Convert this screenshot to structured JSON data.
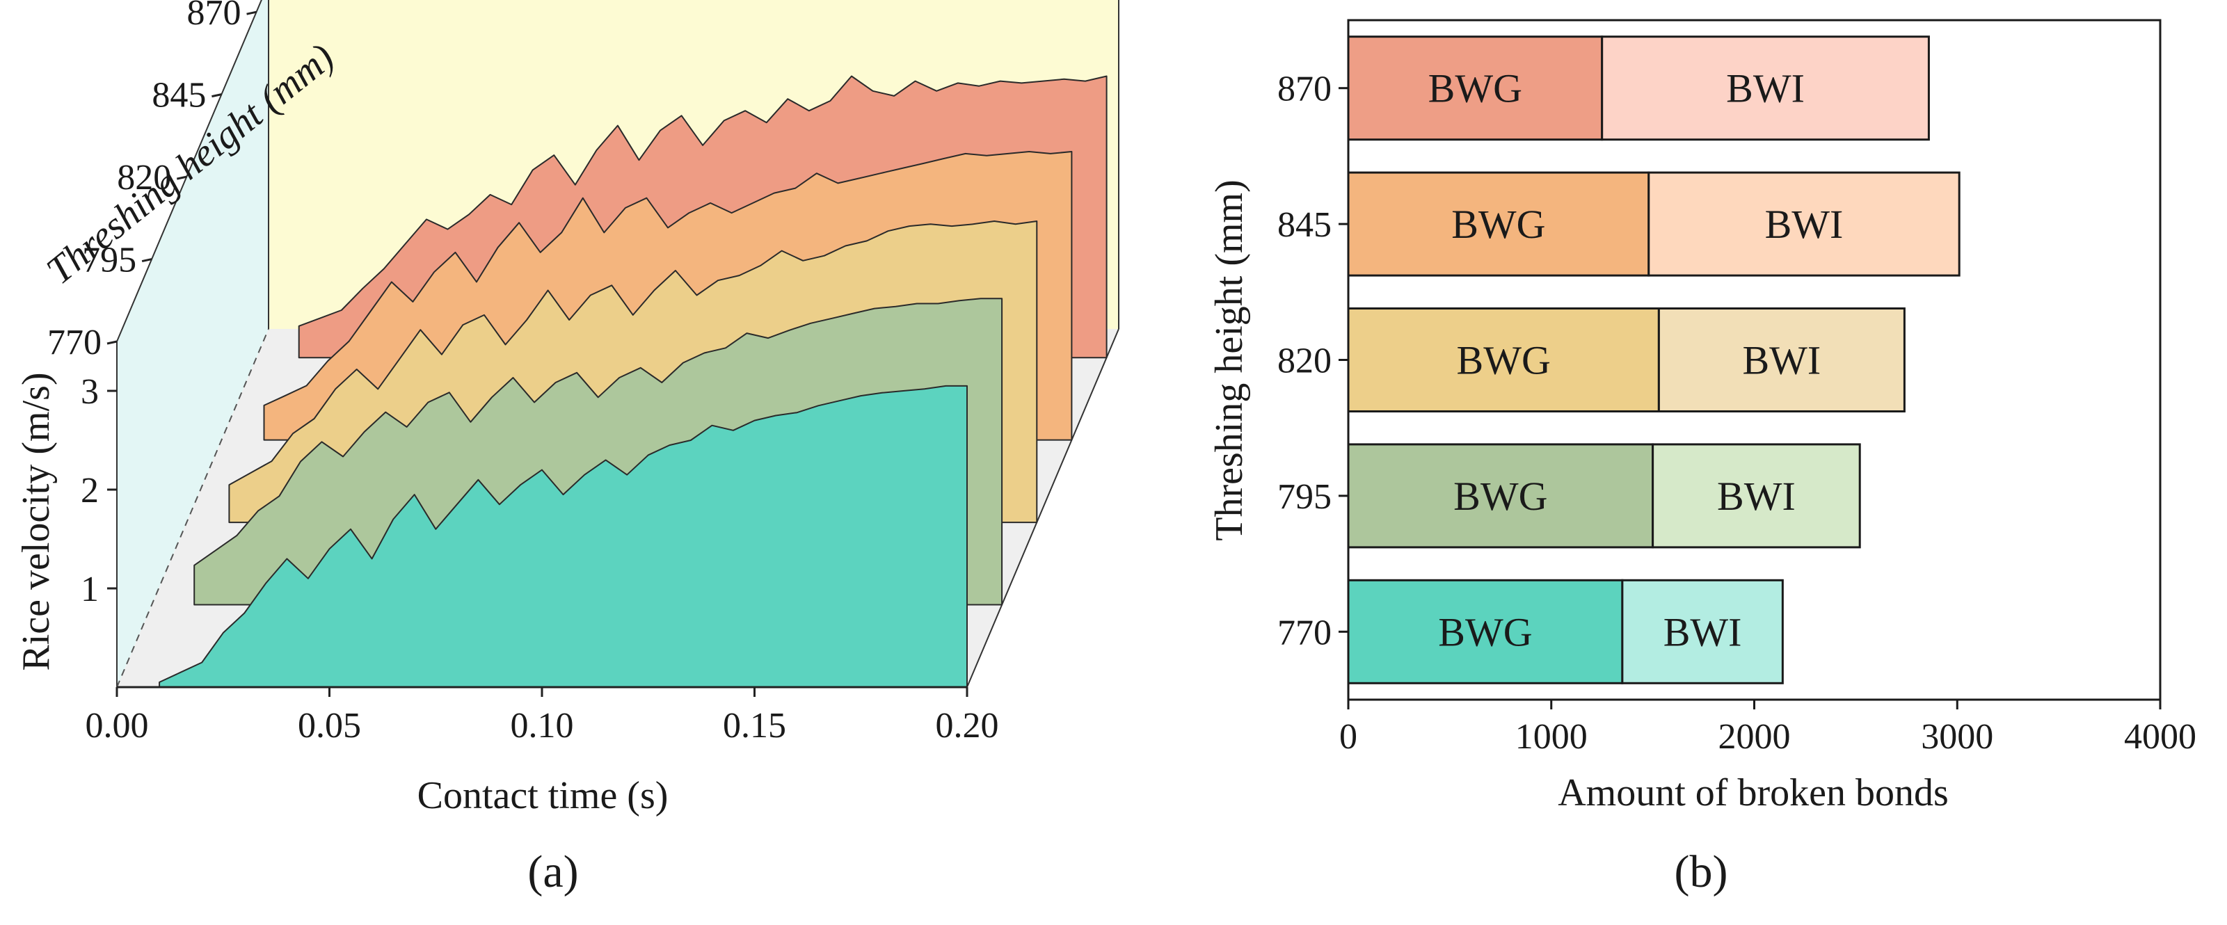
{
  "figure": {
    "panel_a_label": "(a)",
    "panel_b_label": "(b)"
  },
  "chart_data": [
    {
      "type": "area",
      "subtype": "3d-waterfall",
      "title": "",
      "xlabel": "Contact time (s)",
      "ylabel": "Rice velocity (m/s)",
      "zlabel": "Threshing height (mm)",
      "xlim": [
        0.0,
        0.2
      ],
      "ylim": [
        0,
        3.5
      ],
      "x_ticks": [
        "0.00",
        "0.05",
        "0.10",
        "0.15",
        "0.20"
      ],
      "y_ticks": [
        "1",
        "2",
        "3"
      ],
      "z_ticks": [
        "770",
        "795",
        "820",
        "845",
        "870"
      ],
      "wall_colors": {
        "left": "#e3f6f5",
        "back": "#fdfbd3",
        "floor": "#efefef"
      },
      "series": [
        {
          "name": "870",
          "color": "#ee9c84",
          "x": [
            0.01,
            0.015,
            0.02,
            0.025,
            0.03,
            0.035,
            0.04,
            0.045,
            0.05,
            0.055,
            0.06,
            0.065,
            0.07,
            0.075,
            0.08,
            0.085,
            0.09,
            0.095,
            0.1,
            0.105,
            0.11,
            0.115,
            0.12,
            0.125,
            0.13,
            0.135,
            0.14,
            0.145,
            0.15,
            0.155,
            0.16,
            0.165,
            0.17,
            0.175,
            0.18,
            0.185,
            0.19,
            0.195,
            0.2
          ],
          "values": [
            0.32,
            0.4,
            0.48,
            0.7,
            0.9,
            1.15,
            1.4,
            1.3,
            1.45,
            1.65,
            1.55,
            1.9,
            2.05,
            1.75,
            2.1,
            2.35,
            2.0,
            2.3,
            2.45,
            2.15,
            2.4,
            2.5,
            2.38,
            2.62,
            2.5,
            2.6,
            2.85,
            2.7,
            2.65,
            2.8,
            2.7,
            2.78,
            2.75,
            2.8,
            2.78,
            2.8,
            2.82,
            2.8,
            2.85
          ]
        },
        {
          "name": "845",
          "color": "#f4b57e",
          "x": [
            0.01,
            0.015,
            0.02,
            0.025,
            0.03,
            0.035,
            0.04,
            0.045,
            0.05,
            0.055,
            0.06,
            0.065,
            0.07,
            0.075,
            0.08,
            0.085,
            0.09,
            0.095,
            0.1,
            0.105,
            0.11,
            0.115,
            0.12,
            0.125,
            0.13,
            0.135,
            0.14,
            0.145,
            0.15,
            0.155,
            0.16,
            0.165,
            0.17,
            0.175,
            0.18,
            0.185,
            0.19,
            0.195,
            0.2
          ],
          "values": [
            0.35,
            0.45,
            0.55,
            0.8,
            1.0,
            1.3,
            1.6,
            1.4,
            1.7,
            1.9,
            1.6,
            1.95,
            2.2,
            1.9,
            2.1,
            2.45,
            2.1,
            2.35,
            2.45,
            2.15,
            2.3,
            2.4,
            2.3,
            2.4,
            2.5,
            2.55,
            2.7,
            2.6,
            2.65,
            2.7,
            2.75,
            2.8,
            2.85,
            2.9,
            2.88,
            2.9,
            2.92,
            2.9,
            2.92
          ]
        },
        {
          "name": "820",
          "color": "#eccf8a",
          "x": [
            0.01,
            0.015,
            0.02,
            0.025,
            0.03,
            0.035,
            0.04,
            0.045,
            0.05,
            0.055,
            0.06,
            0.065,
            0.07,
            0.075,
            0.08,
            0.085,
            0.09,
            0.095,
            0.1,
            0.105,
            0.11,
            0.115,
            0.12,
            0.125,
            0.13,
            0.135,
            0.14,
            0.145,
            0.15,
            0.155,
            0.16,
            0.165,
            0.17,
            0.175,
            0.18,
            0.185,
            0.19,
            0.195,
            0.2
          ],
          "values": [
            0.38,
            0.5,
            0.62,
            0.9,
            1.05,
            1.35,
            1.55,
            1.35,
            1.65,
            1.95,
            1.7,
            2.0,
            2.1,
            1.8,
            2.05,
            2.35,
            2.05,
            2.3,
            2.4,
            2.1,
            2.35,
            2.55,
            2.3,
            2.45,
            2.5,
            2.6,
            2.75,
            2.65,
            2.7,
            2.8,
            2.85,
            2.95,
            3.0,
            3.02,
            3.0,
            3.02,
            3.05,
            3.02,
            3.05
          ]
        },
        {
          "name": "795",
          "color": "#adc79c",
          "x": [
            0.01,
            0.015,
            0.02,
            0.025,
            0.03,
            0.035,
            0.04,
            0.045,
            0.05,
            0.055,
            0.06,
            0.065,
            0.07,
            0.075,
            0.08,
            0.085,
            0.09,
            0.095,
            0.1,
            0.105,
            0.11,
            0.115,
            0.12,
            0.125,
            0.13,
            0.135,
            0.14,
            0.145,
            0.15,
            0.155,
            0.16,
            0.165,
            0.17,
            0.175,
            0.18,
            0.185,
            0.19,
            0.195,
            0.2
          ],
          "values": [
            0.4,
            0.55,
            0.7,
            0.95,
            1.1,
            1.45,
            1.65,
            1.5,
            1.75,
            1.95,
            1.8,
            2.05,
            2.15,
            1.85,
            2.1,
            2.3,
            2.05,
            2.25,
            2.35,
            2.1,
            2.3,
            2.4,
            2.25,
            2.45,
            2.55,
            2.6,
            2.75,
            2.7,
            2.78,
            2.85,
            2.9,
            2.95,
            3.0,
            3.02,
            3.05,
            3.05,
            3.08,
            3.1,
            3.1
          ]
        },
        {
          "name": "770",
          "color": "#5cd3bf",
          "x": [
            0.01,
            0.015,
            0.02,
            0.025,
            0.03,
            0.035,
            0.04,
            0.045,
            0.05,
            0.055,
            0.06,
            0.065,
            0.07,
            0.075,
            0.08,
            0.085,
            0.09,
            0.095,
            0.1,
            0.105,
            0.11,
            0.115,
            0.12,
            0.125,
            0.13,
            0.135,
            0.14,
            0.145,
            0.15,
            0.155,
            0.16,
            0.165,
            0.17,
            0.175,
            0.18,
            0.185,
            0.19,
            0.195,
            0.2
          ],
          "values": [
            0.05,
            0.15,
            0.25,
            0.55,
            0.75,
            1.05,
            1.3,
            1.1,
            1.4,
            1.6,
            1.3,
            1.7,
            1.95,
            1.6,
            1.85,
            2.1,
            1.85,
            2.05,
            2.2,
            1.95,
            2.15,
            2.3,
            2.15,
            2.35,
            2.45,
            2.5,
            2.65,
            2.6,
            2.7,
            2.75,
            2.78,
            2.85,
            2.9,
            2.95,
            2.98,
            3.0,
            3.02,
            3.05,
            3.05
          ]
        }
      ]
    },
    {
      "type": "bar",
      "orientation": "horizontal",
      "stacked": true,
      "title": "",
      "xlabel": "Amount of broken bonds",
      "ylabel": "Threshing height (mm)",
      "xlim": [
        0,
        4000
      ],
      "x_ticks": [
        "0",
        "1000",
        "2000",
        "3000",
        "4000"
      ],
      "categories": [
        "870",
        "845",
        "820",
        "795",
        "770"
      ],
      "series": [
        {
          "name": "BWG",
          "values": [
            1250,
            1480,
            1530,
            1500,
            1350
          ],
          "colors": [
            "#ee9e86",
            "#f4b57e",
            "#edcf8a",
            "#adc69c",
            "#5cd3be"
          ]
        },
        {
          "name": "BWI",
          "values": [
            1610,
            1530,
            1210,
            1020,
            790
          ],
          "colors": [
            "#fdd3c7",
            "#fed8bd",
            "#f2dfb7",
            "#d6e9c9",
            "#b3ede2"
          ]
        }
      ]
    }
  ]
}
